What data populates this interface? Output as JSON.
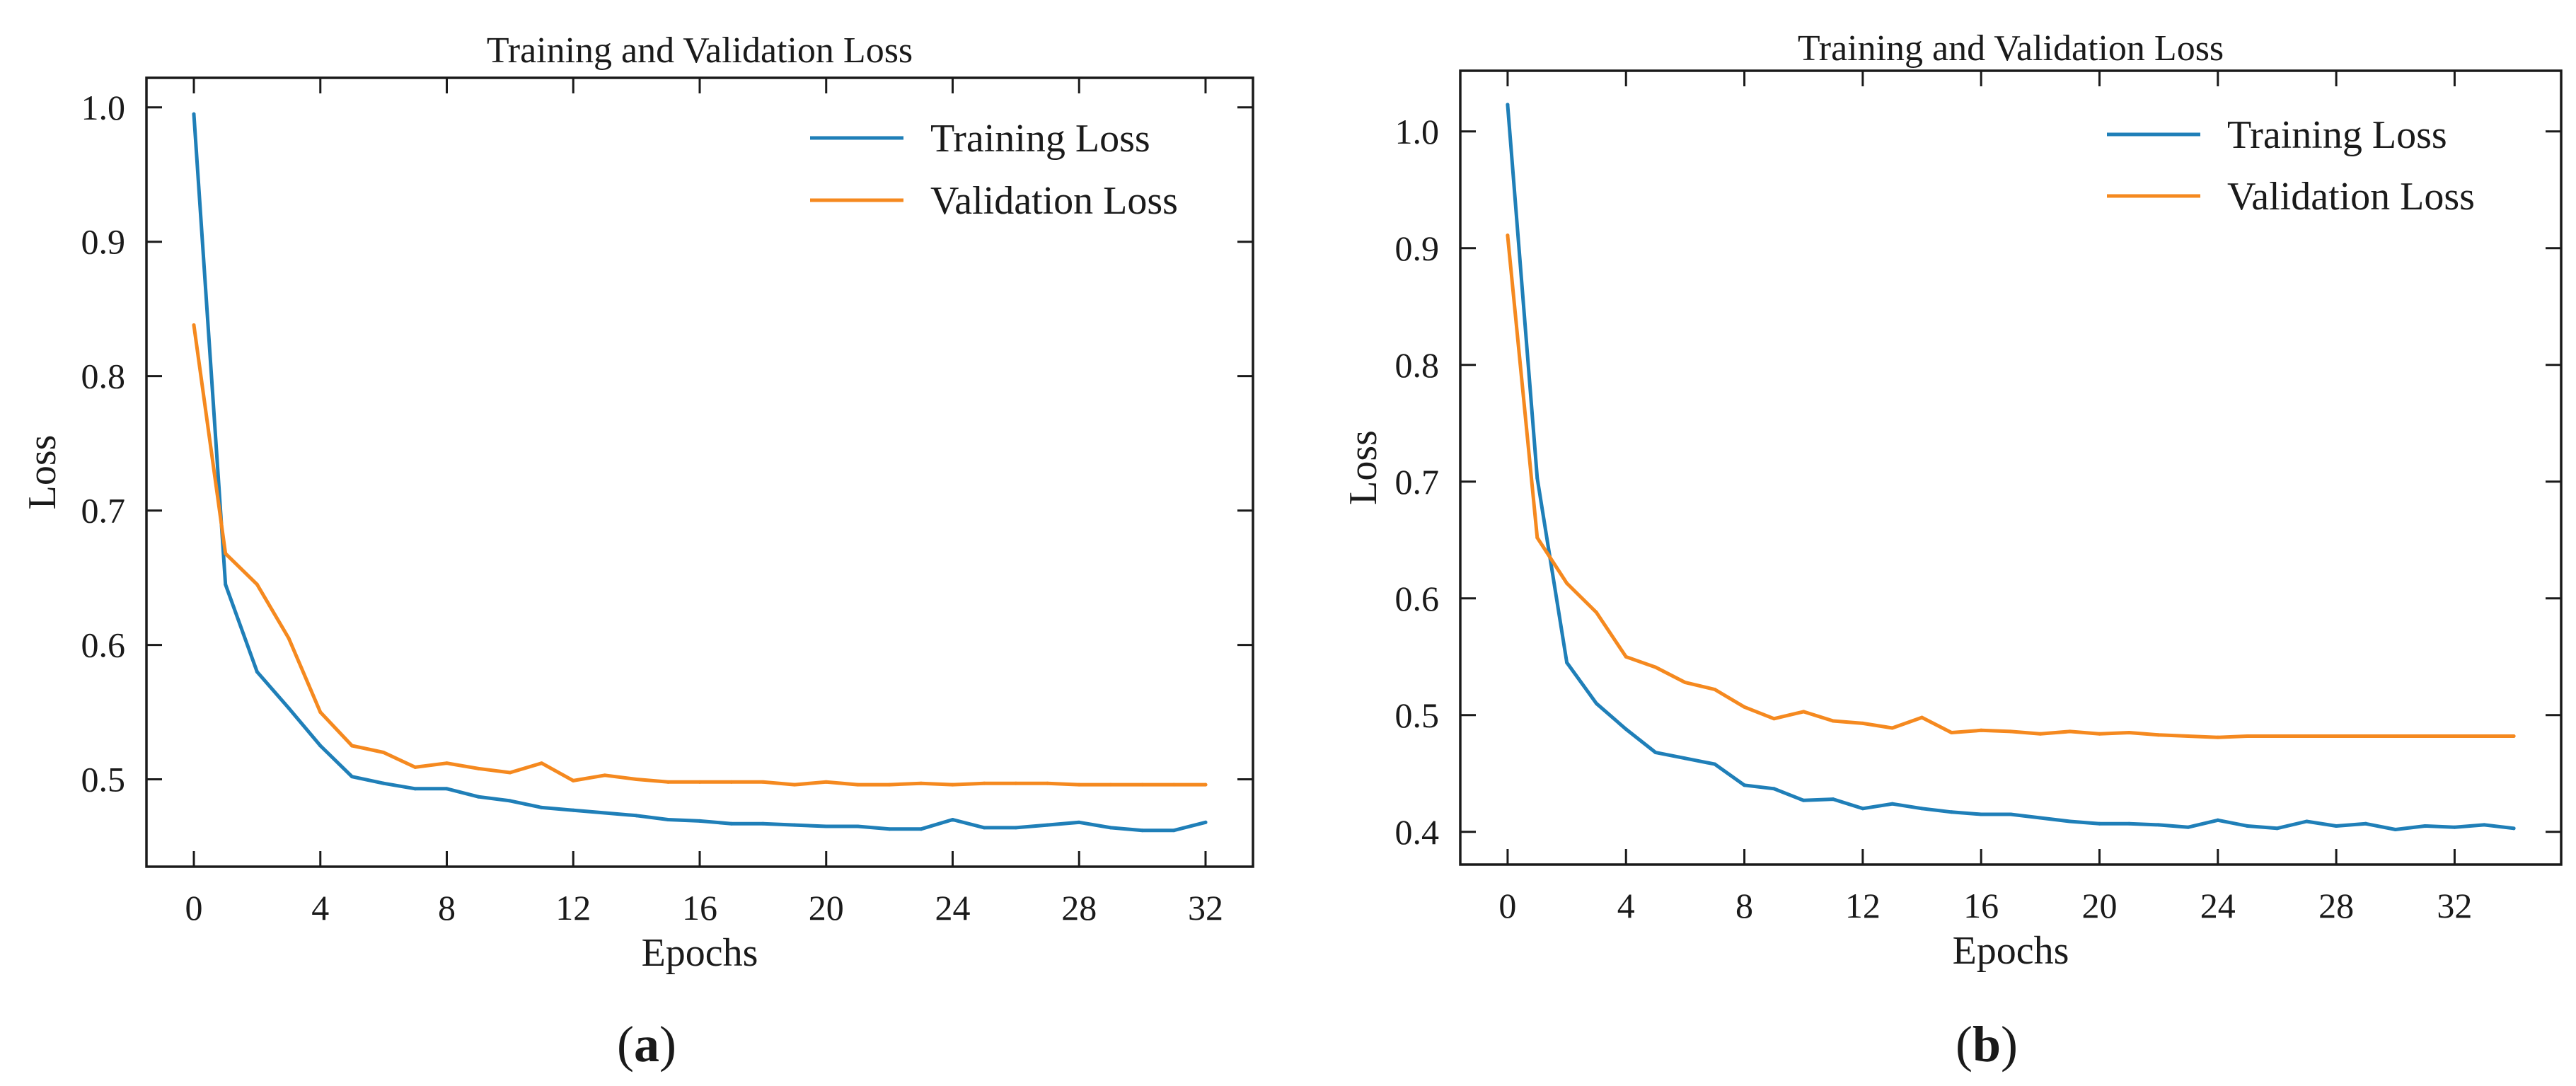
{
  "colors": {
    "training": "#1f7fb8",
    "validation": "#f5891f"
  },
  "chart_data": [
    {
      "type": "line",
      "panel": "a",
      "caption": [
        "(",
        "a",
        ")"
      ],
      "title": "Training and Validation Loss",
      "xlabel": "Epochs",
      "ylabel": "Loss",
      "xlim": [
        -1.5,
        33.5
      ],
      "ylim": [
        0.435,
        1.022
      ],
      "xticks": [
        0,
        4,
        8,
        12,
        16,
        20,
        24,
        28,
        32
      ],
      "yticks": [
        0.5,
        0.6,
        0.7,
        0.8,
        0.9,
        1.0
      ],
      "ytick_labels": [
        "0.5",
        "0.6",
        "0.7",
        "0.8",
        "0.9",
        "1.0"
      ],
      "legend_position": "top-right",
      "x": [
        0,
        1,
        2,
        3,
        4,
        5,
        6,
        7,
        8,
        9,
        10,
        11,
        12,
        13,
        14,
        15,
        16,
        17,
        18,
        19,
        20,
        21,
        22,
        23,
        24,
        25,
        26,
        27,
        28,
        29,
        30,
        31,
        32
      ],
      "series": [
        {
          "name": "Training Loss",
          "color_key": "training",
          "values": [
            0.995,
            0.645,
            0.58,
            0.553,
            0.525,
            0.502,
            0.497,
            0.493,
            0.493,
            0.487,
            0.484,
            0.479,
            0.477,
            0.475,
            0.473,
            0.47,
            0.469,
            0.467,
            0.467,
            0.466,
            0.465,
            0.465,
            0.463,
            0.463,
            0.47,
            0.464,
            0.464,
            0.466,
            0.468,
            0.464,
            0.462,
            0.462,
            0.468
          ]
        },
        {
          "name": "Validation Loss",
          "color_key": "validation",
          "values": [
            0.838,
            0.668,
            0.645,
            0.605,
            0.55,
            0.525,
            0.52,
            0.509,
            0.512,
            0.508,
            0.505,
            0.512,
            0.499,
            0.503,
            0.5,
            0.498,
            0.498,
            0.498,
            0.498,
            0.496,
            0.498,
            0.496,
            0.496,
            0.497,
            0.496,
            0.497,
            0.497,
            0.497,
            0.496,
            0.496,
            0.496,
            0.496,
            0.496
          ]
        }
      ]
    },
    {
      "type": "line",
      "panel": "b",
      "caption": [
        "(",
        "b",
        ")"
      ],
      "title": "Training and Validation Loss",
      "xlabel": "Epochs",
      "ylabel": "Loss",
      "xlim": [
        -1.6,
        35.6
      ],
      "ylim": [
        0.372,
        1.052
      ],
      "xticks": [
        0,
        4,
        8,
        12,
        16,
        20,
        24,
        28,
        32
      ],
      "yticks": [
        0.4,
        0.5,
        0.6,
        0.7,
        0.8,
        0.9,
        1.0
      ],
      "ytick_labels": [
        "0.4",
        "0.5",
        "0.6",
        "0.7",
        "0.8",
        "0.9",
        "1.0"
      ],
      "legend_position": "top-right",
      "x": [
        0,
        1,
        2,
        3,
        4,
        5,
        6,
        7,
        8,
        9,
        10,
        11,
        12,
        13,
        14,
        15,
        16,
        17,
        18,
        19,
        20,
        21,
        22,
        23,
        24,
        25,
        26,
        27,
        28,
        29,
        30,
        31,
        32,
        33,
        34
      ],
      "series": [
        {
          "name": "Training Loss",
          "color_key": "training",
          "values": [
            1.023,
            0.703,
            0.545,
            0.51,
            0.488,
            0.468,
            0.463,
            0.458,
            0.44,
            0.437,
            0.427,
            0.428,
            0.42,
            0.424,
            0.42,
            0.417,
            0.415,
            0.415,
            0.412,
            0.409,
            0.407,
            0.407,
            0.406,
            0.404,
            0.41,
            0.405,
            0.403,
            0.409,
            0.405,
            0.407,
            0.402,
            0.405,
            0.404,
            0.406,
            0.403
          ]
        },
        {
          "name": "Validation Loss",
          "color_key": "validation",
          "values": [
            0.911,
            0.652,
            0.613,
            0.588,
            0.55,
            0.541,
            0.528,
            0.522,
            0.507,
            0.497,
            0.503,
            0.495,
            0.493,
            0.489,
            0.498,
            0.485,
            0.487,
            0.486,
            0.484,
            0.486,
            0.484,
            0.485,
            0.483,
            0.482,
            0.481,
            0.482,
            0.482,
            0.482,
            0.482,
            0.482,
            0.482,
            0.482,
            0.482,
            0.482,
            0.482
          ]
        }
      ]
    }
  ]
}
